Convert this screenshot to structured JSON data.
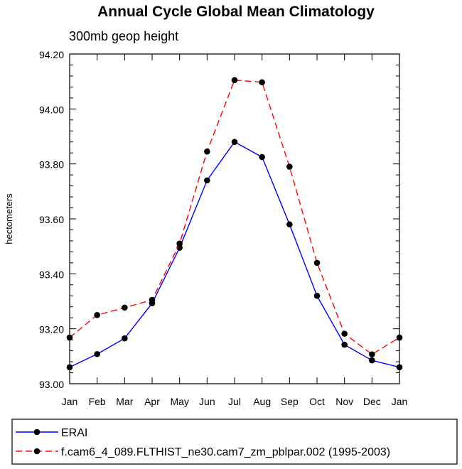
{
  "chart_data": {
    "type": "line",
    "title": "Annual Cycle Global Mean Climatology",
    "subtitle": "300mb geop height",
    "xlabel": "",
    "ylabel": "hectometers",
    "categories": [
      "Jan",
      "Feb",
      "Mar",
      "Apr",
      "May",
      "Jun",
      "Jul",
      "Aug",
      "Sep",
      "Oct",
      "Nov",
      "Dec",
      "Jan"
    ],
    "ylim": [
      93.0,
      94.2
    ],
    "yticks": [
      "93.00",
      "93.20",
      "93.40",
      "93.60",
      "93.80",
      "94.00",
      "94.20"
    ],
    "grid": false,
    "legend_placement": "bottom",
    "series": [
      {
        "name": "ERAI",
        "color": "#0000ff",
        "dash": "solid",
        "values": [
          93.06,
          93.108,
          93.165,
          93.293,
          93.495,
          93.74,
          93.88,
          93.825,
          93.58,
          93.32,
          93.142,
          93.085,
          93.06
        ]
      },
      {
        "name": "f.cam6_4_089.FLTHIST_ne30.cam7_zm_pblpar.002 (1995-2003)",
        "color": "#ff0000",
        "dash": "dashed",
        "values": [
          93.168,
          93.25,
          93.277,
          93.305,
          93.51,
          93.845,
          94.105,
          94.097,
          93.79,
          93.44,
          93.182,
          93.107,
          93.168
        ]
      }
    ]
  }
}
